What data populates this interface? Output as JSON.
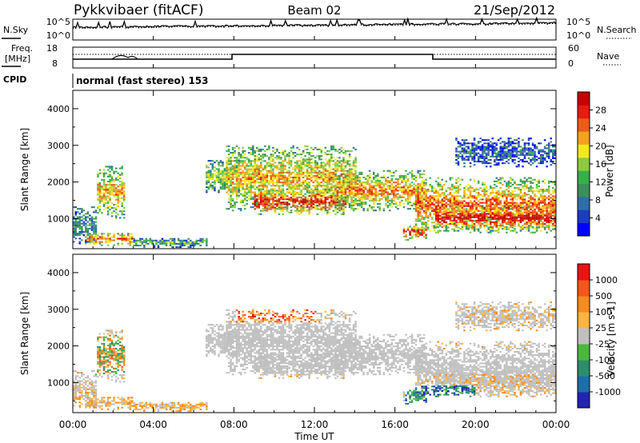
{
  "header": {
    "station": "Pykkvibaer (fitACF)",
    "beam": "Beam 02",
    "date": "21/Sep/2012"
  },
  "noise_panel": {
    "left_label": "N.Sky",
    "right_label": "N.Search",
    "left_ticks": [
      "10^5",
      "10^0"
    ],
    "right_ticks": [
      "10^5",
      "10^0"
    ]
  },
  "freq_panel": {
    "left_label_line1": "Freq.",
    "left_label_line2": "[MHz]",
    "right_label": "Nave",
    "left_ticks": [
      "18",
      "8"
    ],
    "right_ticks": [
      "60",
      "0"
    ]
  },
  "cpid": {
    "label": "CPID",
    "text": "normal (fast stereo) 153"
  },
  "x_axis": {
    "label": "Time UT",
    "ticks": [
      "00:00",
      "04:00",
      "08:00",
      "12:00",
      "16:00",
      "20:00",
      "00:00"
    ]
  },
  "chart_data": [
    {
      "type": "heatmap",
      "name": "power",
      "ylabel": "Slant Range [km]",
      "ylim": [
        180,
        4500
      ],
      "yticks": [
        1000,
        2000,
        3000,
        4000
      ],
      "xlim_hours": [
        0,
        24
      ],
      "colorbar": {
        "label": "Power [dB]",
        "ticks": [
          "28",
          "24",
          "20",
          "16",
          "12",
          "8",
          "4"
        ],
        "colors": [
          "#0000ff",
          "#1a3cc8",
          "#2f6ea8",
          "#3c8e5a",
          "#36b04a",
          "#8ccc3c",
          "#f2ea1e",
          "#f6a21c",
          "#ee5a18",
          "#e51c10",
          "#c80000"
        ]
      },
      "regions": [
        {
          "t": [
            0.0,
            1.1
          ],
          "r": [
            300,
            1300
          ],
          "level": 0.3
        },
        {
          "t": [
            1.2,
            2.6
          ],
          "r": [
            1000,
            2400
          ],
          "level": 0.6
        },
        {
          "t": [
            0.6,
            3.0
          ],
          "r": [
            250,
            600
          ],
          "level": 0.7
        },
        {
          "t": [
            3.0,
            6.6
          ],
          "r": [
            200,
            450
          ],
          "level": 0.35
        },
        {
          "t": [
            6.6,
            8.2
          ],
          "r": [
            1700,
            2600
          ],
          "level": 0.45
        },
        {
          "t": [
            7.6,
            14.0
          ],
          "r": [
            1200,
            3000
          ],
          "level": 0.6
        },
        {
          "t": [
            9.0,
            13.5
          ],
          "r": [
            1100,
            1800
          ],
          "level": 0.8
        },
        {
          "t": [
            13.0,
            17.5
          ],
          "r": [
            1200,
            2300
          ],
          "level": 0.65
        },
        {
          "t": [
            16.4,
            17.6
          ],
          "r": [
            400,
            800
          ],
          "level": 0.8
        },
        {
          "t": [
            17.0,
            24.0
          ],
          "r": [
            600,
            2100
          ],
          "level": 0.7
        },
        {
          "t": [
            18.0,
            24.0
          ],
          "r": [
            700,
            1300
          ],
          "level": 0.9
        },
        {
          "t": [
            19.0,
            24.0
          ],
          "r": [
            2400,
            3200
          ],
          "level": 0.2
        }
      ]
    },
    {
      "type": "heatmap",
      "name": "velocity",
      "ylabel": "Slant Range [km]",
      "ylim": [
        180,
        4500
      ],
      "yticks": [
        1000,
        2000,
        3000,
        4000
      ],
      "xlim_hours": [
        0,
        24
      ],
      "colorbar": {
        "label": "Velocity [m s-1]",
        "ticks": [
          "1000",
          "500",
          "100",
          "25",
          "-25",
          "-100",
          "-500",
          "-1000"
        ],
        "colors": [
          "#2323b4",
          "#1c6ea8",
          "#2c8e6a",
          "#4bb83c",
          "#bfbfbf",
          "#ffb43c",
          "#f98a1c",
          "#f8561a",
          "#e61414"
        ]
      },
      "regions": [
        {
          "t": [
            1.0,
            2.6
          ],
          "r": [
            1200,
            2300
          ],
          "v": "towards_mixed"
        },
        {
          "t": [
            0.0,
            6.6
          ],
          "r": [
            200,
            600
          ],
          "v": "away_small"
        },
        {
          "t": [
            6.6,
            18.0
          ],
          "r": [
            1200,
            2600
          ],
          "v": "ground_scatter"
        },
        {
          "t": [
            8.0,
            12.0
          ],
          "r": [
            1900,
            3100
          ],
          "v": "away"
        },
        {
          "t": [
            16.5,
            20.0
          ],
          "r": [
            400,
            900
          ],
          "v": "towards"
        },
        {
          "t": [
            17.0,
            24.0
          ],
          "r": [
            1200,
            1900
          ],
          "v": "ground_scatter"
        }
      ]
    }
  ]
}
